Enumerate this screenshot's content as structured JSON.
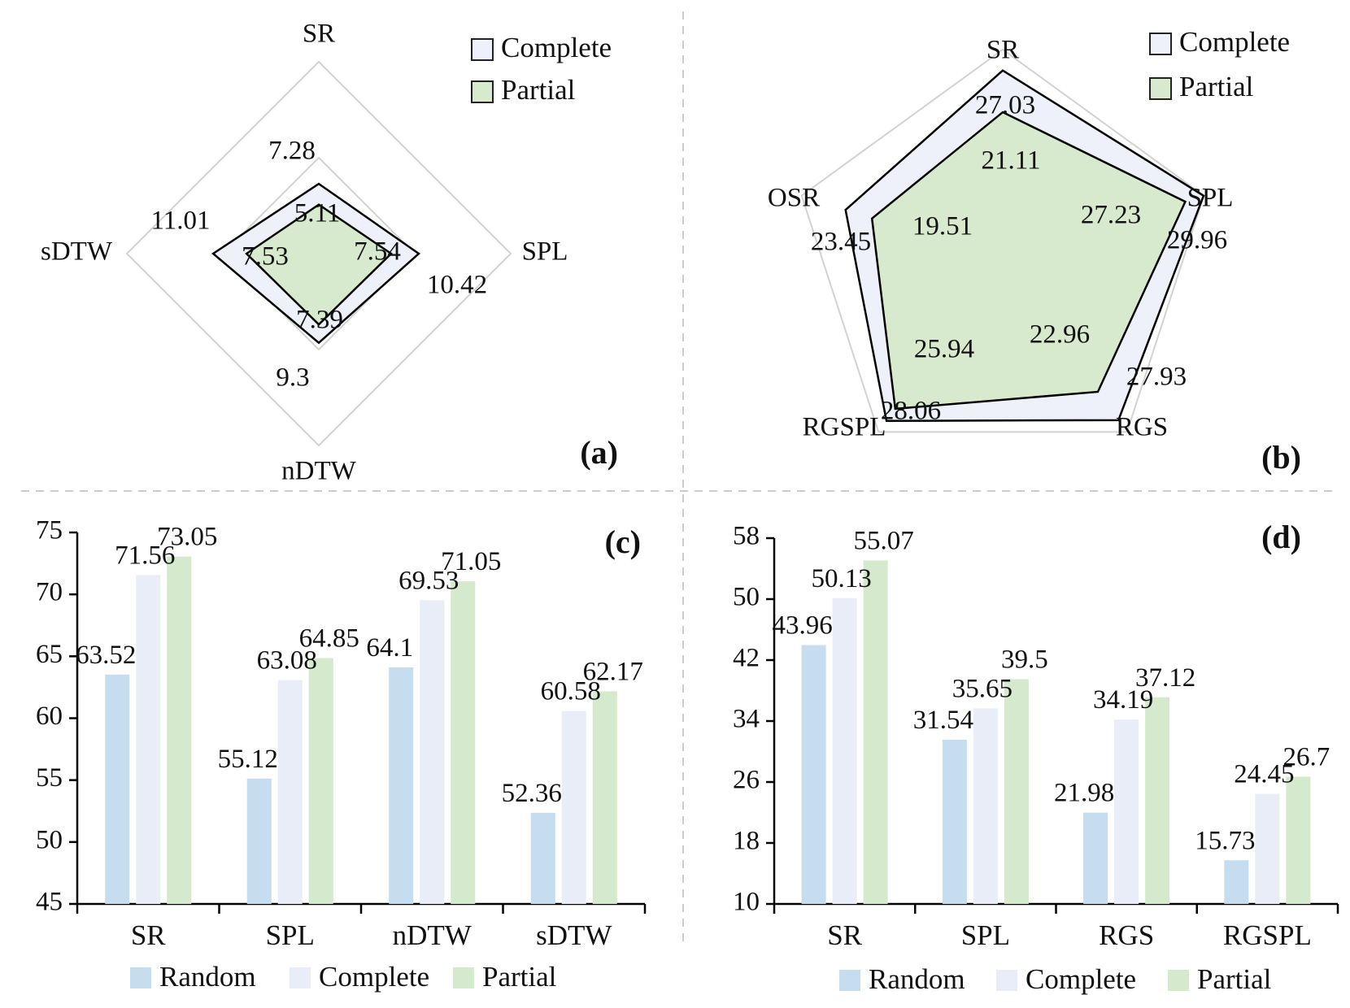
{
  "colors": {
    "random": "#c6dcef",
    "complete": "#e8edf8",
    "partial": "#d5e9cc",
    "complete_fill": "#eef1f9",
    "partial_fill": "#d8eacd",
    "grid": "#d2d2d2",
    "outline": "#000000",
    "divider": "#cccccc"
  },
  "chart_data": [
    {
      "id": "a",
      "panel_label": "(a)",
      "type": "radar",
      "axes": [
        "SR",
        "SPL",
        "nDTW",
        "sDTW"
      ],
      "scale_max": 20,
      "rings": [
        10,
        20
      ],
      "legend": [
        "Complete",
        "Partial"
      ],
      "series": [
        {
          "name": "Complete",
          "values": [
            7.28,
            10.42,
            9.3,
            11.01
          ],
          "labels": [
            "7.28",
            "10.42",
            "9.3",
            "11.01"
          ]
        },
        {
          "name": "Partial",
          "values": [
            5.11,
            7.54,
            7.39,
            7.53
          ],
          "labels": [
            "5.11",
            "7.54",
            "7.39",
            "7.53"
          ]
        }
      ]
    },
    {
      "id": "b",
      "panel_label": "(b)",
      "type": "radar",
      "axes": [
        "SR",
        "SPL",
        "RGS",
        "RGSPL",
        "OSR"
      ],
      "scale_max": 30,
      "rings": [
        15,
        30
      ],
      "legend": [
        "Complete",
        "Partial"
      ],
      "series": [
        {
          "name": "Complete",
          "values": [
            27.03,
            29.96,
            27.93,
            28.06,
            23.45
          ],
          "labels": [
            "27.03",
            "29.96",
            "27.93",
            "28.06",
            "23.45"
          ]
        },
        {
          "name": "Partial",
          "values": [
            21.11,
            27.23,
            22.96,
            25.94,
            19.51
          ],
          "labels": [
            "21.11",
            "27.23",
            "22.96",
            "25.94",
            "19.51"
          ]
        }
      ]
    },
    {
      "id": "c",
      "panel_label": "(c)",
      "type": "bar",
      "categories": [
        "SR",
        "SPL",
        "nDTW",
        "sDTW"
      ],
      "ylim": [
        45,
        75
      ],
      "yticks": [
        "45",
        "50",
        "55",
        "60",
        "65",
        "70",
        "75"
      ],
      "legend": [
        "Random",
        "Complete",
        "Partial"
      ],
      "series": [
        {
          "name": "Random",
          "values": [
            63.52,
            55.12,
            64.1,
            52.36
          ],
          "labels": [
            "63.52",
            "55.12",
            "64.1",
            "52.36"
          ]
        },
        {
          "name": "Complete",
          "values": [
            71.56,
            63.08,
            69.53,
            60.58
          ],
          "labels": [
            "71.56",
            "63.08",
            "69.53",
            "60.58"
          ]
        },
        {
          "name": "Partial",
          "values": [
            73.05,
            64.85,
            71.05,
            62.17
          ],
          "labels": [
            "73.05",
            "64.85",
            "71.05",
            "62.17"
          ]
        }
      ]
    },
    {
      "id": "d",
      "panel_label": "(d)",
      "type": "bar",
      "categories": [
        "SR",
        "SPL",
        "RGS",
        "RGSPL"
      ],
      "ylim": [
        10,
        58
      ],
      "yticks": [
        "10",
        "18",
        "26",
        "34",
        "42",
        "50",
        "58"
      ],
      "legend": [
        "Random",
        "Complete",
        "Partial"
      ],
      "series": [
        {
          "name": "Random",
          "values": [
            43.96,
            31.54,
            21.98,
            15.73
          ],
          "labels": [
            "43.96",
            "31.54",
            "21.98",
            "15.73"
          ]
        },
        {
          "name": "Complete",
          "values": [
            50.13,
            35.65,
            34.19,
            24.45
          ],
          "labels": [
            "50.13",
            "35.65",
            "34.19",
            "24.45"
          ]
        },
        {
          "name": "Partial",
          "values": [
            55.07,
            39.5,
            37.12,
            26.7
          ],
          "labels": [
            "55.07",
            "39.5",
            "37.12",
            "26.7"
          ]
        }
      ]
    }
  ]
}
